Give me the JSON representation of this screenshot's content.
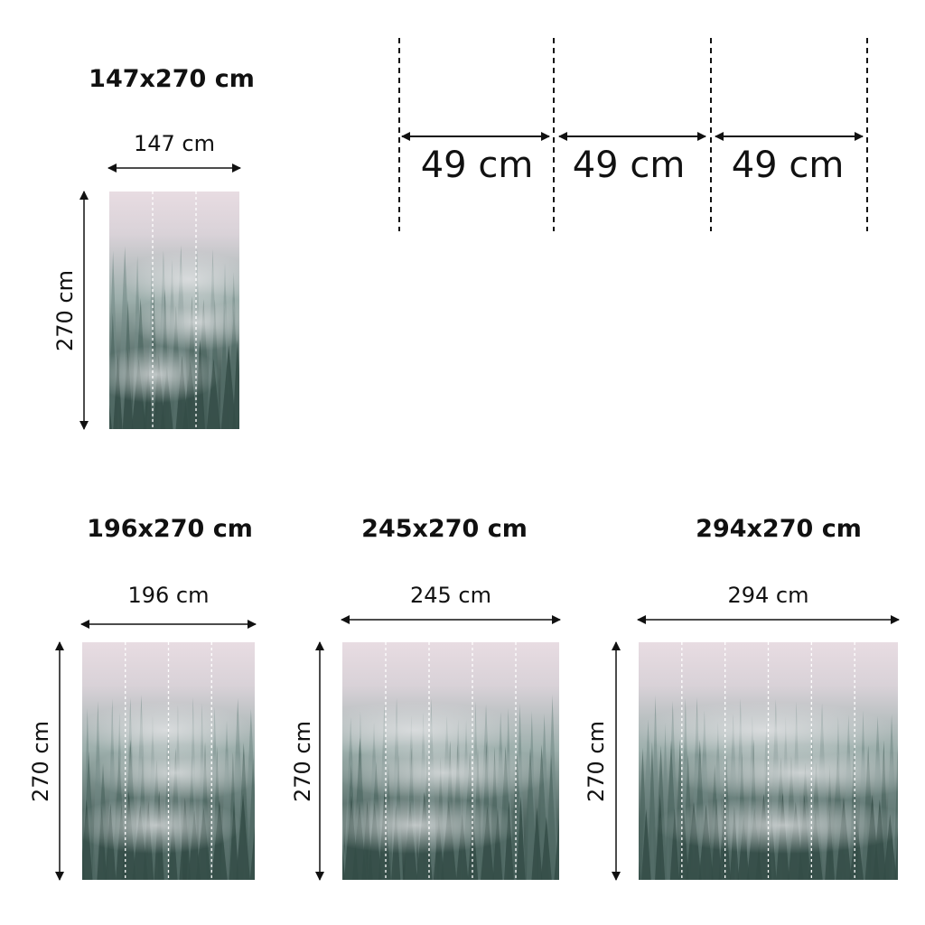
{
  "panels": [
    {
      "title": "147x270 cm",
      "width_label": "147 cm",
      "height_label": "270 cm",
      "strips": 3
    },
    {
      "title": "196x270 cm",
      "width_label": "196 cm",
      "height_label": "270 cm",
      "strips": 4
    },
    {
      "title": "245x270 cm",
      "width_label": "245 cm",
      "height_label": "270 cm",
      "strips": 5
    },
    {
      "title": "294x270 cm",
      "width_label": "294 cm",
      "height_label": "270 cm",
      "strips": 6
    }
  ],
  "strip_width": {
    "labels": [
      "49 cm",
      "49 cm",
      "49 cm"
    ]
  },
  "colors": {
    "sky": "#e8dce2",
    "mist": "#9eb0ad",
    "forest": "#2e4540",
    "lines": "#111111"
  }
}
